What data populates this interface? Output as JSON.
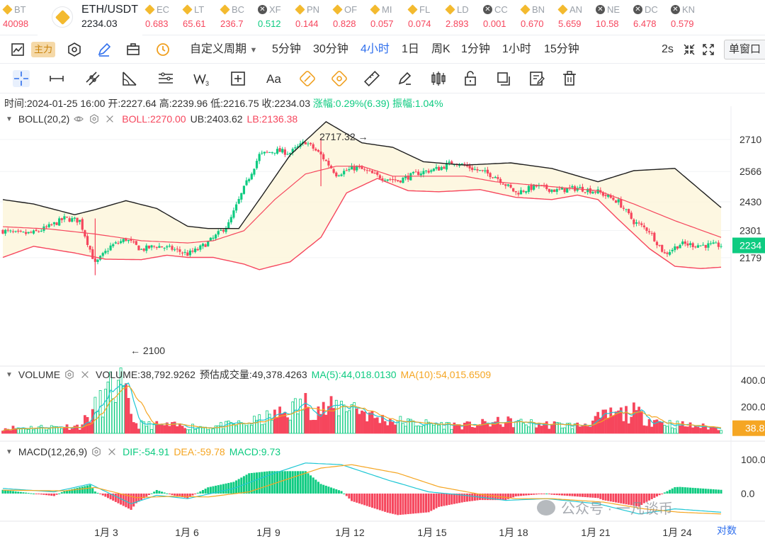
{
  "tickers": [
    {
      "name": "BT",
      "price": "40098",
      "dir": "down",
      "icon": "binance-icon"
    },
    {
      "name": "ETH/USDT",
      "price": "2234.03",
      "dir": "active",
      "icon": "binance-icon"
    },
    {
      "name": "EC",
      "price": "0.683",
      "dir": "down",
      "icon": "binance-icon"
    },
    {
      "name": "LT",
      "price": "65.61",
      "dir": "down",
      "icon": "binance-icon"
    },
    {
      "name": "BC",
      "price": "236.7",
      "dir": "down",
      "icon": "binance-icon"
    },
    {
      "name": "XF",
      "price": "0.512",
      "dir": "up",
      "icon": "x-coin-icon"
    },
    {
      "name": "PN",
      "price": "0.144",
      "dir": "down",
      "icon": "binance-icon"
    },
    {
      "name": "OF",
      "price": "0.828",
      "dir": "down",
      "icon": "binance-icon"
    },
    {
      "name": "MI",
      "price": "0.057",
      "dir": "down",
      "icon": "binance-icon"
    },
    {
      "name": "FL",
      "price": "0.074",
      "dir": "down",
      "icon": "binance-icon"
    },
    {
      "name": "LD",
      "price": "2.893",
      "dir": "down",
      "icon": "binance-icon"
    },
    {
      "name": "CC",
      "price": "0.001",
      "dir": "down",
      "icon": "x-coin-icon"
    },
    {
      "name": "BN",
      "price": "0.670",
      "dir": "down",
      "icon": "binance-icon"
    },
    {
      "name": "AN",
      "price": "5.659",
      "dir": "down",
      "icon": "binance-icon"
    },
    {
      "name": "NE",
      "price": "10.58",
      "dir": "down",
      "icon": "x-coin-icon"
    },
    {
      "name": "DC",
      "price": "6.478",
      "dir": "down",
      "icon": "x-coin-icon"
    },
    {
      "name": "KN",
      "price": "0.579",
      "dir": "down",
      "icon": "x-coin-icon"
    }
  ],
  "toolbar": {
    "main_badge": "主力",
    "custom_period": "自定义周期",
    "intervals": [
      {
        "label": "5分钟",
        "active": false
      },
      {
        "label": "30分钟",
        "active": false
      },
      {
        "label": "4小时",
        "active": true
      },
      {
        "label": "1日",
        "active": false
      },
      {
        "label": "周K",
        "active": false
      },
      {
        "label": "1分钟",
        "active": false
      },
      {
        "label": "1小时",
        "active": false
      },
      {
        "label": "15分钟",
        "active": false
      }
    ],
    "refresh": "2s",
    "window_mode": "单窗口"
  },
  "info": {
    "time": "时间:2024-01-25 16:00",
    "open": "开:2227.64",
    "high": "高:2239.96",
    "low": "低:2216.75",
    "close": "收:2234.03",
    "change": "涨幅:0.29%(6.39)",
    "amplitude": "振幅:1.04%"
  },
  "boll": {
    "name": "BOLL(20,2)",
    "mid": "BOLL:2270.00",
    "ub": "UB:2403.62",
    "lb": "LB:2136.38"
  },
  "volume": {
    "name": "VOLUME",
    "value": "VOLUME:38,792.9262",
    "estimate": "预估成交量:49,378.4263",
    "ma5": "MA(5):44,018.0130",
    "ma10": "MA(10):54,015.6509"
  },
  "macd": {
    "name": "MACD(12,26,9)",
    "dif": "DIF:-54.91",
    "dea": "DEA:-59.78",
    "macd": "MACD:9.73"
  },
  "colors": {
    "up": "#0ecb81",
    "down": "#f6465d",
    "accent": "#2f6fed",
    "boll_mid": "#f6465d",
    "boll_band": "#1e1e1e",
    "ma5": "#1fc7d4",
    "ma10": "#f5a623",
    "last_price": "#0ecb81",
    "vol_last": "#f5a623"
  },
  "chart_data": {
    "type": "candlestick",
    "price_axis": {
      "ticks": [
        "2710",
        "2566",
        "2430",
        "2301",
        "2179"
      ],
      "last_price": "2234",
      "ylim": [
        2080,
        2800
      ]
    },
    "volume_axis": {
      "ticks": [
        "400.0",
        "200.0"
      ],
      "last_value": "38.8"
    },
    "macd_axis": {
      "ticks": [
        "100.0",
        "0.0"
      ]
    },
    "x_ticks": [
      "1月 3",
      "1月 6",
      "1月 9",
      "1月 12",
      "1月 15",
      "1月 18",
      "1月 21",
      "1月 24"
    ],
    "annotations": [
      {
        "label": "2717.32",
        "arrow": "→"
      },
      {
        "label": "2100",
        "arrow": "←"
      }
    ],
    "scale_mode": "对数",
    "close_anchors": [
      [
        0,
        2300
      ],
      [
        6,
        2285
      ],
      [
        12,
        2290
      ],
      [
        18,
        2318
      ],
      [
        24,
        2355
      ],
      [
        30,
        2345
      ],
      [
        36,
        2150
      ],
      [
        42,
        2230
      ],
      [
        48,
        2262
      ],
      [
        54,
        2215
      ],
      [
        60,
        2232
      ],
      [
        66,
        2218
      ],
      [
        72,
        2195
      ],
      [
        76,
        2215
      ],
      [
        82,
        2265
      ],
      [
        88,
        2330
      ],
      [
        94,
        2490
      ],
      [
        100,
        2640
      ],
      [
        106,
        2660
      ],
      [
        112,
        2650
      ],
      [
        118,
        2700
      ],
      [
        124,
        2640
      ],
      [
        130,
        2555
      ],
      [
        138,
        2585
      ],
      [
        146,
        2545
      ],
      [
        154,
        2525
      ],
      [
        162,
        2560
      ],
      [
        170,
        2580
      ],
      [
        176,
        2610
      ],
      [
        184,
        2575
      ],
      [
        192,
        2545
      ],
      [
        200,
        2470
      ],
      [
        208,
        2500
      ],
      [
        216,
        2480
      ],
      [
        224,
        2492
      ],
      [
        232,
        2475
      ],
      [
        240,
        2430
      ],
      [
        246,
        2340
      ],
      [
        252,
        2300
      ],
      [
        258,
        2195
      ],
      [
        264,
        2240
      ],
      [
        272,
        2235
      ],
      [
        280,
        2234
      ]
    ],
    "boll_mid_anchors": [
      [
        0,
        2318
      ],
      [
        18,
        2308
      ],
      [
        36,
        2285
      ],
      [
        54,
        2255
      ],
      [
        72,
        2245
      ],
      [
        82,
        2255
      ],
      [
        94,
        2300
      ],
      [
        106,
        2440
      ],
      [
        118,
        2555
      ],
      [
        130,
        2590
      ],
      [
        140,
        2590
      ],
      [
        152,
        2545
      ],
      [
        164,
        2545
      ],
      [
        180,
        2545
      ],
      [
        192,
        2520
      ],
      [
        212,
        2500
      ],
      [
        232,
        2480
      ],
      [
        246,
        2420
      ],
      [
        262,
        2345
      ],
      [
        280,
        2270
      ]
    ],
    "boll_ub_anchors": [
      [
        0,
        2440
      ],
      [
        12,
        2420
      ],
      [
        28,
        2372
      ],
      [
        36,
        2395
      ],
      [
        48,
        2435
      ],
      [
        60,
        2400
      ],
      [
        72,
        2320
      ],
      [
        80,
        2310
      ],
      [
        92,
        2310
      ],
      [
        100,
        2440
      ],
      [
        112,
        2640
      ],
      [
        126,
        2790
      ],
      [
        140,
        2695
      ],
      [
        152,
        2675
      ],
      [
        164,
        2610
      ],
      [
        180,
        2595
      ],
      [
        198,
        2605
      ],
      [
        214,
        2580
      ],
      [
        232,
        2520
      ],
      [
        246,
        2570
      ],
      [
        262,
        2580
      ],
      [
        280,
        2404
      ]
    ],
    "boll_lb_anchors": [
      [
        0,
        2180
      ],
      [
        12,
        2230
      ],
      [
        28,
        2200
      ],
      [
        40,
        2172
      ],
      [
        54,
        2170
      ],
      [
        64,
        2190
      ],
      [
        72,
        2180
      ],
      [
        82,
        2180
      ],
      [
        94,
        2150
      ],
      [
        100,
        2125
      ],
      [
        112,
        2160
      ],
      [
        124,
        2270
      ],
      [
        134,
        2470
      ],
      [
        146,
        2535
      ],
      [
        158,
        2480
      ],
      [
        170,
        2475
      ],
      [
        186,
        2485
      ],
      [
        200,
        2450
      ],
      [
        214,
        2440
      ],
      [
        224,
        2460
      ],
      [
        232,
        2440
      ],
      [
        240,
        2350
      ],
      [
        252,
        2220
      ],
      [
        262,
        2140
      ],
      [
        272,
        2130
      ],
      [
        280,
        2136
      ]
    ],
    "volume_anchors": [
      [
        0,
        40
      ],
      [
        30,
        55
      ],
      [
        45,
        400
      ],
      [
        52,
        70
      ],
      [
        80,
        50
      ],
      [
        96,
        80
      ],
      [
        108,
        150
      ],
      [
        118,
        230
      ],
      [
        126,
        180
      ],
      [
        135,
        240
      ],
      [
        145,
        120
      ],
      [
        160,
        80
      ],
      [
        180,
        60
      ],
      [
        196,
        90
      ],
      [
        210,
        70
      ],
      [
        225,
        60
      ],
      [
        236,
        140
      ],
      [
        246,
        160
      ],
      [
        252,
        110
      ],
      [
        262,
        70
      ],
      [
        280,
        39
      ]
    ],
    "macd_dif_anchors": [
      [
        0,
        15
      ],
      [
        20,
        5
      ],
      [
        34,
        28
      ],
      [
        50,
        -30
      ],
      [
        60,
        -5
      ],
      [
        72,
        -15
      ],
      [
        90,
        15
      ],
      [
        104,
        55
      ],
      [
        118,
        90
      ],
      [
        132,
        85
      ],
      [
        150,
        40
      ],
      [
        166,
        5
      ],
      [
        180,
        -5
      ],
      [
        196,
        -20
      ],
      [
        212,
        -15
      ],
      [
        232,
        -30
      ],
      [
        248,
        -60
      ],
      [
        262,
        -45
      ],
      [
        280,
        -55
      ]
    ],
    "macd_dea_anchors": [
      [
        0,
        10
      ],
      [
        24,
        8
      ],
      [
        36,
        18
      ],
      [
        52,
        -12
      ],
      [
        66,
        -8
      ],
      [
        80,
        -10
      ],
      [
        96,
        5
      ],
      [
        110,
        40
      ],
      [
        124,
        75
      ],
      [
        136,
        85
      ],
      [
        154,
        60
      ],
      [
        170,
        20
      ],
      [
        186,
        -2
      ],
      [
        200,
        -15
      ],
      [
        214,
        -15
      ],
      [
        234,
        -25
      ],
      [
        250,
        -45
      ],
      [
        264,
        -55
      ],
      [
        280,
        -60
      ]
    ]
  }
}
